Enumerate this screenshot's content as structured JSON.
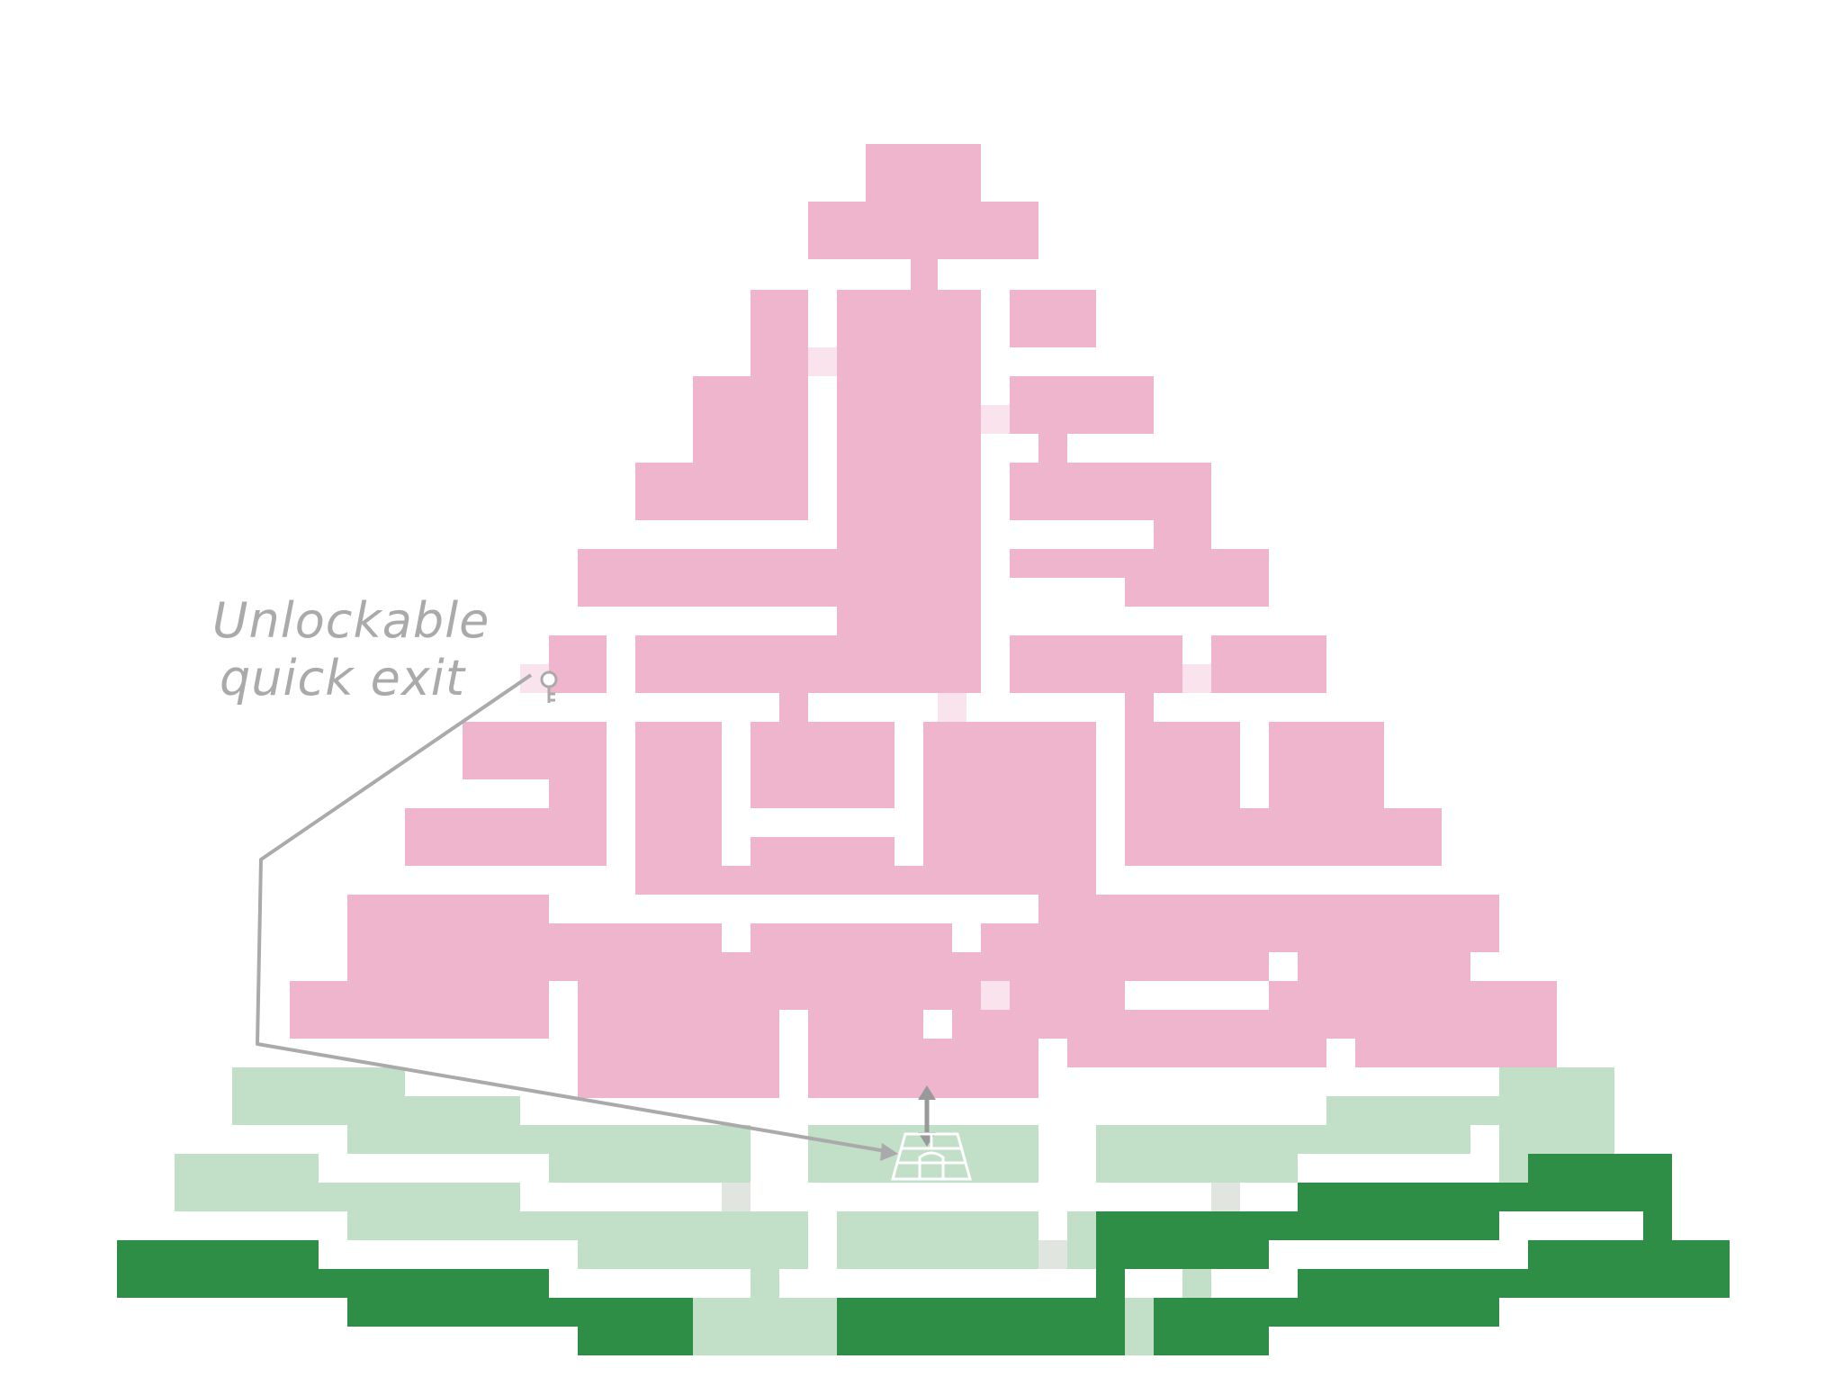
{
  "annotation": {
    "line1": "Unlockable",
    "line2": "quick exit"
  },
  "icons": {
    "key": "key-icon",
    "exit_gate": "exit-gate-icon",
    "arrow": "double-arrow-icon"
  },
  "colors": {
    "upper_zone": "#eeb5cc",
    "upper_zone_faint": "#f9e3ec",
    "lower_zone_light": "#c2dfc8",
    "lower_zone_light_faint": "#e0e5df",
    "lower_zone_dark": "#2e8e46",
    "annotation": "#aaaaaa",
    "background": "#ffffff"
  }
}
